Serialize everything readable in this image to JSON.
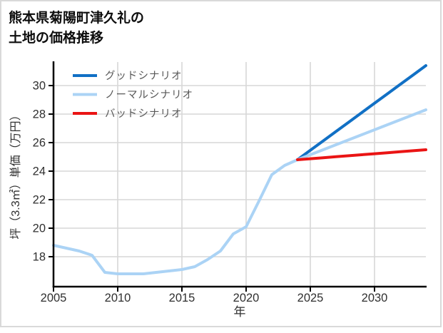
{
  "title": {
    "line1": "熊本県菊陽町津久礼の",
    "line2": "土地の価格推移"
  },
  "chart_data": {
    "type": "line",
    "title": "熊本県菊陽町津久礼の土地の価格推移",
    "xlabel": "年",
    "ylabel": "坪（3.3㎡）単価（万円）",
    "xlim": [
      2005,
      2034
    ],
    "ylim": [
      15.9,
      31.65
    ],
    "x_ticks": [
      2005,
      2010,
      2015,
      2020,
      2025,
      2030
    ],
    "y_ticks": [
      18,
      20,
      22,
      24,
      26,
      28,
      30
    ],
    "grid": true,
    "legend_position": "upper-left-inside",
    "colors": {
      "grid": "#d7d7d7",
      "axis": "#000000",
      "tick_label": "#303030",
      "legend_label": "#595959"
    },
    "series": [
      {
        "id": "good",
        "name": "グッドシナリオ",
        "color": "#1170c5",
        "width": 4,
        "x": [
          2024,
          2025,
          2026,
          2027,
          2028,
          2029,
          2030,
          2031,
          2032,
          2033,
          2034
        ],
        "values": [
          24.8,
          25.46,
          26.12,
          26.78,
          27.44,
          28.1,
          28.76,
          29.42,
          30.08,
          30.74,
          31.4
        ]
      },
      {
        "id": "normal",
        "name": "ノーマルシナリオ",
        "color": "#abd3f5",
        "width": 4,
        "x": [
          2005,
          2006,
          2007,
          2008,
          2009,
          2010,
          2011,
          2012,
          2013,
          2014,
          2015,
          2016,
          2017,
          2018,
          2019,
          2020,
          2021,
          2022,
          2023,
          2024,
          2025,
          2026,
          2027,
          2028,
          2029,
          2030,
          2031,
          2032,
          2033,
          2034
        ],
        "values": [
          18.8,
          18.6,
          18.4,
          18.1,
          16.9,
          16.8,
          16.8,
          16.8,
          16.9,
          17.0,
          17.1,
          17.3,
          17.8,
          18.4,
          19.6,
          20.1,
          21.9,
          23.75,
          24.4,
          24.8,
          25.15,
          25.5,
          25.85,
          26.2,
          26.55,
          26.9,
          27.25,
          27.6,
          27.95,
          28.3
        ]
      },
      {
        "id": "bad",
        "name": "バッドシナリオ",
        "color": "#ea1414",
        "width": 4,
        "x": [
          2024,
          2025,
          2026,
          2027,
          2028,
          2029,
          2030,
          2031,
          2032,
          2033,
          2034
        ],
        "values": [
          24.8,
          24.87,
          24.94,
          25.01,
          25.08,
          25.15,
          25.22,
          25.29,
          25.36,
          25.43,
          25.5
        ]
      }
    ]
  }
}
